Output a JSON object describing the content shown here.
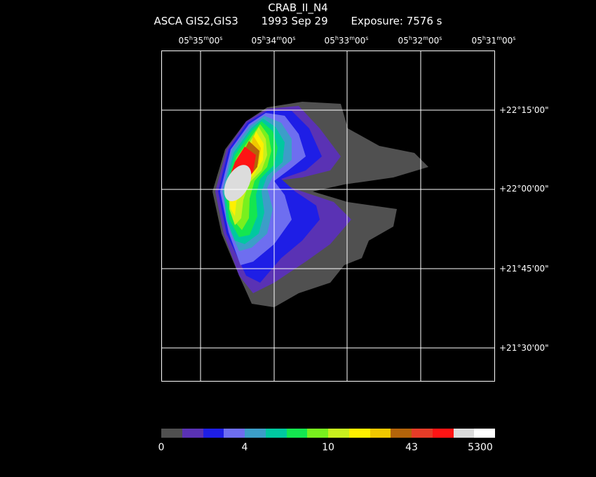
{
  "header": {
    "object": "CRAB_II_N4",
    "instrument": "ASCA GIS2,GIS3",
    "date": "1993 Sep 29",
    "exposure": "Exposure: 7576 s"
  },
  "ra_axis": [
    {
      "h": "05",
      "m": "35",
      "s": "00"
    },
    {
      "h": "05",
      "m": "34",
      "s": "00"
    },
    {
      "h": "05",
      "m": "33",
      "s": "00"
    },
    {
      "h": "05",
      "m": "32",
      "s": "00"
    },
    {
      "h": "05",
      "m": "31",
      "s": "00"
    }
  ],
  "dec_axis": [
    "+22°15'00\"",
    "+22°00'00\"",
    "+21°45'00\"",
    "+21°30'00\""
  ],
  "colorbar": {
    "colors": [
      "#505050",
      "#5a32b4",
      "#1e1ee6",
      "#6e6ef0",
      "#3c9ec8",
      "#00c8a0",
      "#14e650",
      "#78f01e",
      "#c8f01e",
      "#fff000",
      "#f0c800",
      "#b4640a",
      "#e63c28",
      "#ff1414",
      "#dcdcdc",
      "#ffffff"
    ],
    "labels": [
      "0",
      "4",
      "10",
      "43",
      "5300"
    ]
  }
}
